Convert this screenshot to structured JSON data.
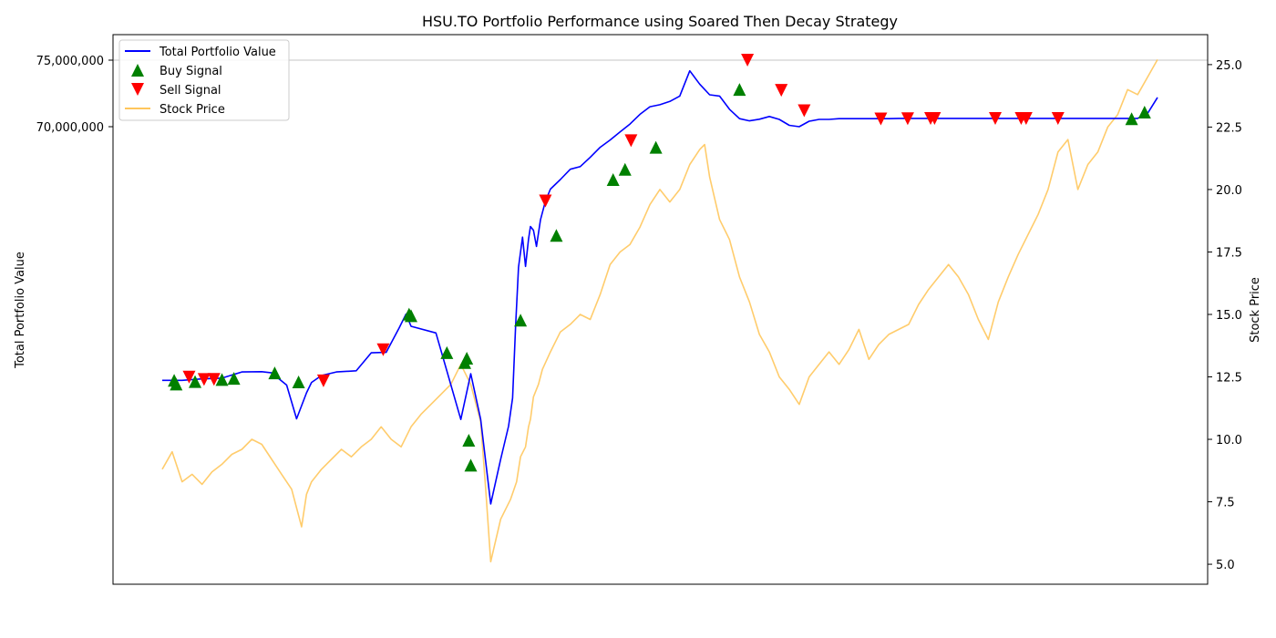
{
  "chart_data": {
    "type": "line",
    "title": "HSU.TO Portfolio Performance using Soared Then Decay Strategy",
    "xlabel": "",
    "ylabel_left": "Total Portfolio Value",
    "ylabel_right": "Stock Price",
    "x_ticks_visible": false,
    "grid": {
      "horizontal_at": 75000000
    },
    "legend_position": "upper-left",
    "left_axis": {
      "ticks": [
        70000000,
        75000000
      ],
      "tick_labels": [
        "70,000,000",
        "75,000,000"
      ]
    },
    "right_axis": {
      "ylim": [
        4.2,
        26.2
      ],
      "ticks": [
        5.0,
        7.5,
        10.0,
        12.5,
        15.0,
        17.5,
        20.0,
        22.5,
        25.0
      ],
      "tick_labels": [
        "5.0",
        "7.5",
        "10.0",
        "12.5",
        "15.0",
        "17.5",
        "20.0",
        "22.5",
        "25.0"
      ]
    },
    "x_range": [
      0,
      1000
    ],
    "series": [
      {
        "name": "Total Portfolio Value",
        "axis": "left",
        "color": "#0000ff",
        "x": [
          0,
          20,
          40,
          60,
          80,
          100,
          110,
          125,
          135,
          145,
          150,
          160,
          175,
          195,
          210,
          225,
          238,
          245,
          250,
          275,
          300,
          310,
          320,
          330,
          340,
          348,
          352,
          355,
          358,
          362,
          365,
          368,
          370,
          373,
          376,
          380,
          385,
          390,
          400,
          410,
          420,
          430,
          440,
          450,
          460,
          470,
          480,
          490,
          500,
          510,
          520,
          530,
          540,
          550,
          560,
          570,
          580,
          590,
          600,
          610,
          620,
          630,
          640,
          650,
          660,
          670,
          680,
          690,
          700,
          710,
          720,
          730,
          740,
          750,
          760,
          770,
          780,
          800,
          820,
          840,
          860,
          880,
          900,
          920,
          940,
          960,
          980,
          990,
          1000
        ],
        "y": [
          50940000,
          50940000,
          51050000,
          51100000,
          51570000,
          51590000,
          51500000,
          50580000,
          48050000,
          50000000,
          50780000,
          51300000,
          51570000,
          51660000,
          53010000,
          53040000,
          54870000,
          55920000,
          55000000,
          54500000,
          48000000,
          51440000,
          48000000,
          41650000,
          45000000,
          47500000,
          49600000,
          55000000,
          59430000,
          61700000,
          59500000,
          61550000,
          62500000,
          62220000,
          61000000,
          63000000,
          64400000,
          65310000,
          66030000,
          66800000,
          67000000,
          67700000,
          68450000,
          69000000,
          69600000,
          70200000,
          70930000,
          71500000,
          71650000,
          71900000,
          72300000,
          74200000,
          73200000,
          72400000,
          72300000,
          71310000,
          70600000,
          70440000,
          70560000,
          70770000,
          70550000,
          70100000,
          70000000,
          70410000,
          70550000,
          70550000,
          70600000,
          70600000,
          70600000,
          70600000,
          70600000,
          70600000,
          70620000,
          70620000,
          70620000,
          70620000,
          70620000,
          70620000,
          70620000,
          70620000,
          70620000,
          70620000,
          70620000,
          70620000,
          70620000,
          70620000,
          70620000,
          71000000,
          72200000
        ]
      },
      {
        "name": "Stock Price",
        "axis": "right",
        "color": "#ffc65c",
        "x": [
          0,
          10,
          20,
          30,
          40,
          50,
          60,
          70,
          80,
          90,
          100,
          110,
          120,
          130,
          140,
          145,
          150,
          160,
          170,
          180,
          190,
          200,
          210,
          220,
          230,
          240,
          250,
          260,
          270,
          280,
          290,
          300,
          310,
          320,
          325,
          330,
          340,
          350,
          356,
          360,
          365,
          368,
          370,
          373,
          378,
          382,
          390,
          400,
          410,
          420,
          430,
          440,
          450,
          460,
          470,
          480,
          490,
          500,
          510,
          520,
          530,
          540,
          545,
          550,
          560,
          570,
          580,
          590,
          600,
          610,
          620,
          630,
          640,
          650,
          660,
          670,
          680,
          690,
          700,
          710,
          720,
          730,
          740,
          750,
          760,
          770,
          780,
          790,
          800,
          810,
          820,
          830,
          840,
          850,
          860,
          870,
          880,
          890,
          900,
          910,
          920,
          930,
          940,
          950,
          960,
          970,
          980,
          990,
          1000
        ],
        "y": [
          8.8,
          9.5,
          8.3,
          8.6,
          8.2,
          8.7,
          9.0,
          9.4,
          9.6,
          10.0,
          9.8,
          9.2,
          8.6,
          8.0,
          6.5,
          7.8,
          8.3,
          8.8,
          9.2,
          9.6,
          9.3,
          9.7,
          10.0,
          10.5,
          10.0,
          9.7,
          10.5,
          11.0,
          11.4,
          11.8,
          12.2,
          13.0,
          12.2,
          10.7,
          8.0,
          5.1,
          6.8,
          7.6,
          8.3,
          9.3,
          9.7,
          10.5,
          10.8,
          11.7,
          12.2,
          12.8,
          13.5,
          14.3,
          14.6,
          15.0,
          14.8,
          15.8,
          17.0,
          17.5,
          17.8,
          18.5,
          19.4,
          20.0,
          19.5,
          20.0,
          21.0,
          21.6,
          21.8,
          20.5,
          18.8,
          18.0,
          16.5,
          15.5,
          14.2,
          13.5,
          12.5,
          12.0,
          11.4,
          12.5,
          13.0,
          13.5,
          13.0,
          13.6,
          14.4,
          13.2,
          13.8,
          14.2,
          14.4,
          14.6,
          15.4,
          16.0,
          16.5,
          17.0,
          16.5,
          15.8,
          14.8,
          14.0,
          15.5,
          16.5,
          17.4,
          18.2,
          19.0,
          20.0,
          21.5,
          22.0,
          20.0,
          21.0,
          21.5,
          22.5,
          23.0,
          24.0,
          23.8,
          24.5,
          25.2
        ]
      }
    ],
    "buy_signals": {
      "name": "Buy Signal",
      "color": "#008000",
      "x": [
        12,
        14,
        33,
        60,
        72,
        113,
        137,
        248,
        250,
        286,
        304,
        306,
        308,
        310,
        360,
        396,
        453,
        465,
        496,
        580,
        974,
        987
      ],
      "y": [
        50940000,
        50660000,
        50850000,
        51000000,
        51090000,
        51500000,
        50820000,
        55920000,
        55800000,
        53020000,
        52280000,
        52600000,
        46440000,
        44560000,
        55460000,
        61830000,
        66030000,
        66800000,
        68450000,
        72800000,
        70600000,
        71100000
      ]
    },
    "sell_signals": {
      "name": "Sell Signal",
      "color": "#ff0000",
      "x": [
        27,
        42,
        52,
        162,
        222,
        385,
        471,
        588,
        622,
        645,
        722,
        749,
        772,
        776,
        837,
        863,
        868,
        900
      ],
      "y": [
        51180000,
        51000000,
        51010000,
        50900000,
        53240000,
        64420000,
        68950000,
        75000000,
        72730000,
        71200000,
        70580000,
        70600000,
        70620000,
        70620000,
        70620000,
        70620000,
        70620000,
        70620000
      ]
    }
  }
}
